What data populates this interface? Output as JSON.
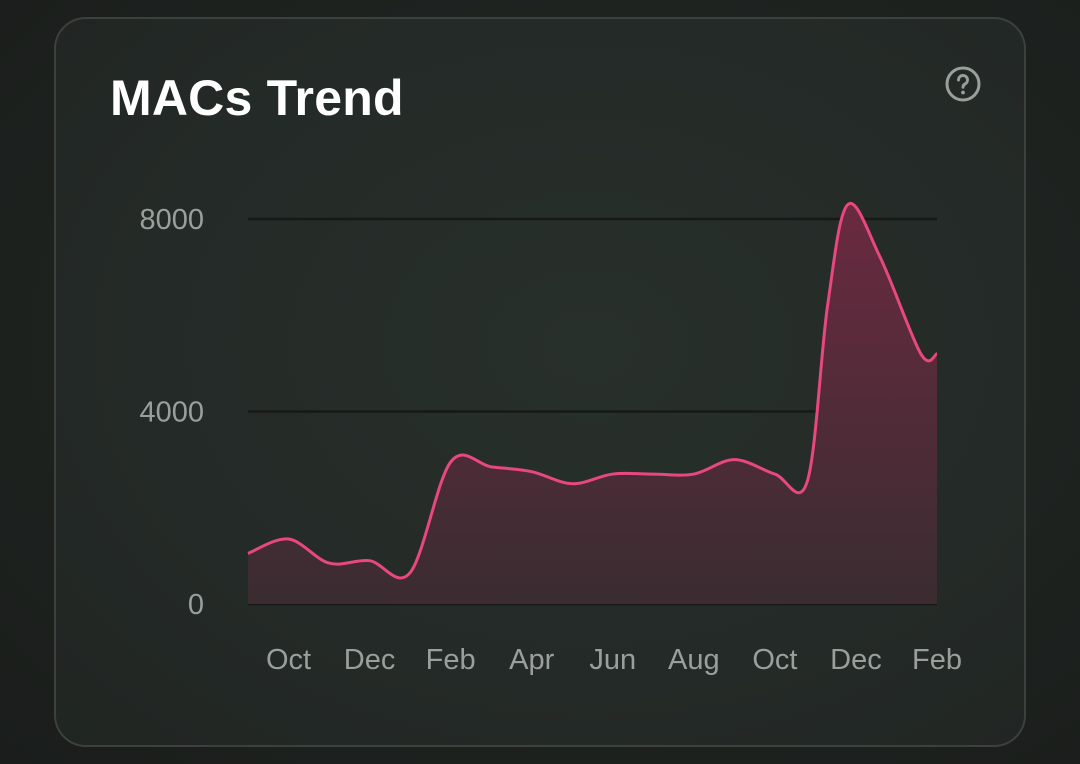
{
  "card": {
    "title": "MACs Trend",
    "help_icon": "question-circle-icon"
  },
  "colors": {
    "line": "#e8477f",
    "area_top": "#6a2a40",
    "area_bottom": "#3a2c31",
    "grid": "#161917",
    "axis_text": "#9a9f9c"
  },
  "chart_data": {
    "type": "area",
    "title": "MACs Trend",
    "xlabel": "",
    "ylabel": "",
    "ylim": [
      0,
      8000
    ],
    "y_ticks": [
      0,
      4000,
      8000
    ],
    "x_ticks": [
      "Oct",
      "Dec",
      "Feb",
      "Apr",
      "Jun",
      "Aug",
      "Oct",
      "Dec",
      "Feb"
    ],
    "x_tick_positions": [
      1,
      3,
      5,
      7,
      9,
      11,
      13,
      15,
      17
    ],
    "grid": true,
    "legend": "none",
    "series": [
      {
        "x": [
          0,
          1,
          2,
          3,
          4,
          5,
          6,
          7,
          8,
          9,
          10,
          11,
          12,
          13,
          13.8,
          14.3,
          14.8,
          15.6,
          16.6,
          17
        ],
        "values": [
          1050,
          1350,
          850,
          900,
          650,
          2950,
          2850,
          2750,
          2500,
          2700,
          2700,
          2700,
          3000,
          2700,
          2550,
          6200,
          8300,
          7200,
          5200,
          5200
        ]
      }
    ]
  }
}
